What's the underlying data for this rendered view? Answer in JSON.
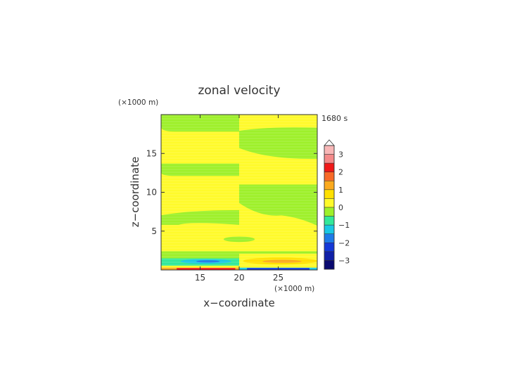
{
  "chart_data": {
    "type": "heatmap",
    "title": "zonal velocity",
    "xlabel": "x−coordinate",
    "ylabel": "z−coordinate",
    "x_unit": "(×1000 m)",
    "y_unit": "(×1000 m)",
    "time_label": "1680 s",
    "xlim": [
      10,
      30
    ],
    "ylim": [
      0,
      20
    ],
    "x_ticks": [
      "15",
      "20",
      "25"
    ],
    "x_tick_values": [
      15,
      20,
      25
    ],
    "y_ticks": [
      "5",
      "10",
      "15"
    ],
    "y_tick_values": [
      5,
      10,
      15
    ],
    "colorbar": {
      "ticks": [
        "3",
        "2",
        "1",
        "0",
        "−1",
        "−2",
        "−3"
      ],
      "tick_values": [
        3,
        2,
        1,
        0,
        -1,
        -2,
        -3
      ],
      "extend": "both-top-triangle",
      "levels": [
        {
          "lo": 3.0,
          "hi": 3.5,
          "color": "#f8b7b7"
        },
        {
          "lo": 2.5,
          "hi": 3.0,
          "color": "#f48a8a"
        },
        {
          "lo": 2.0,
          "hi": 2.5,
          "color": "#f01818"
        },
        {
          "lo": 1.5,
          "hi": 2.0,
          "color": "#f86a28"
        },
        {
          "lo": 1.0,
          "hi": 1.5,
          "color": "#fbaa1e"
        },
        {
          "lo": 0.5,
          "hi": 1.0,
          "color": "#ffe000"
        },
        {
          "lo": 0.0,
          "hi": 0.5,
          "color": "#fffa2a"
        },
        {
          "lo": -0.5,
          "hi": 0.0,
          "color": "#9ef02a"
        },
        {
          "lo": -1.0,
          "hi": -0.5,
          "color": "#33e89a"
        },
        {
          "lo": -1.5,
          "hi": -1.0,
          "color": "#1ac8e4"
        },
        {
          "lo": -2.0,
          "hi": -1.5,
          "color": "#1e7ae8"
        },
        {
          "lo": -2.5,
          "hi": -2.0,
          "color": "#1438d8"
        },
        {
          "lo": -3.0,
          "hi": -2.5,
          "color": "#1020a8"
        },
        {
          "lo": -3.5,
          "hi": -3.0,
          "color": "#0a0a70"
        }
      ]
    },
    "regions": [
      {
        "note": "z in data units (x1000 m), x in data units",
        "value": 0.2,
        "shape": "rect",
        "x": [
          10,
          30
        ],
        "y": [
          0,
          20
        ]
      },
      {
        "value": -0.2,
        "shape": "band_left",
        "x": [
          10,
          20
        ],
        "y": [
          17.8,
          20
        ]
      },
      {
        "value": -0.2,
        "shape": "band_left",
        "x": [
          10,
          20
        ],
        "y": [
          12.1,
          13.7
        ]
      },
      {
        "value": -0.2,
        "shape": "lobe_left",
        "x": [
          10,
          20
        ],
        "y": [
          5.8,
          7.7
        ]
      },
      {
        "value": -0.2,
        "shape": "band_right",
        "x": [
          20,
          30
        ],
        "y": [
          14.3,
          18.3
        ]
      },
      {
        "value": -0.2,
        "shape": "lobe_right",
        "x": [
          20,
          30
        ],
        "y": [
          5.7,
          11.0
        ]
      },
      {
        "value": -0.2,
        "shape": "ellipse",
        "x": [
          18,
          22
        ],
        "y": [
          3.6,
          4.3
        ]
      },
      {
        "value": -0.2,
        "shape": "rect",
        "x": [
          10,
          20
        ],
        "y": [
          1.5,
          2.4
        ]
      },
      {
        "value": -0.2,
        "shape": "rect",
        "x": [
          20,
          30
        ],
        "y": [
          2.1,
          2.4
        ]
      },
      {
        "value": -0.7,
        "shape": "rect",
        "x": [
          10,
          20
        ],
        "y": [
          0.5,
          1.5
        ]
      },
      {
        "value": -1.2,
        "shape": "ellipse",
        "x": [
          12.5,
          19.0
        ],
        "y": [
          0.8,
          1.4
        ]
      },
      {
        "value": -1.7,
        "shape": "ellipse",
        "x": [
          14.5,
          17.5
        ],
        "y": [
          0.95,
          1.25
        ]
      },
      {
        "value": 0.7,
        "shape": "ellipse",
        "x": [
          20.5,
          30
        ],
        "y": [
          0.7,
          1.6
        ]
      },
      {
        "value": 1.2,
        "shape": "ellipse",
        "x": [
          23,
          28
        ],
        "y": [
          0.9,
          1.3
        ]
      },
      {
        "value": 0.2,
        "shape": "rect",
        "x": [
          10,
          30
        ],
        "y": [
          0.3,
          0.55
        ]
      },
      {
        "value": 1.2,
        "shape": "rect",
        "x": [
          10,
          20
        ],
        "y": [
          0.0,
          0.3
        ]
      },
      {
        "value": 2.2,
        "shape": "rect",
        "x": [
          12,
          19.5
        ],
        "y": [
          0.0,
          0.25
        ]
      },
      {
        "value": -1.2,
        "shape": "rect",
        "x": [
          20,
          30
        ],
        "y": [
          0.0,
          0.3
        ]
      },
      {
        "value": -2.2,
        "shape": "rect",
        "x": [
          21,
          29
        ],
        "y": [
          0.0,
          0.25
        ]
      }
    ]
  }
}
